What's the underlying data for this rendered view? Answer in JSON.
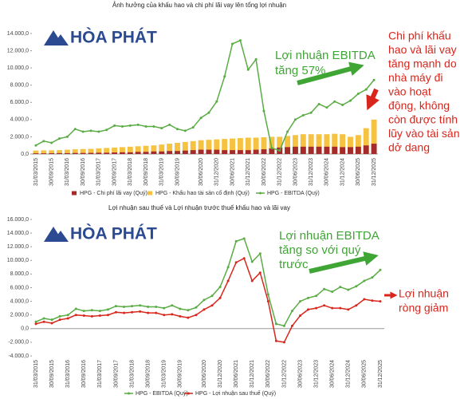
{
  "chart_data": [
    {
      "type": "combo",
      "title": "Ảnh hưởng của khấu hao và chi phí lãi vay lên tổng lợi nhuận",
      "logo": "HÒA PHÁT",
      "categories": [
        "31/03/2015",
        null,
        "30/09/2015",
        null,
        "31/03/2016",
        null,
        "30/09/2016",
        null,
        "31/03/2017",
        null,
        "30/09/2017",
        null,
        "31/03/2018",
        null,
        "30/09/2018",
        null,
        "31/03/2019",
        null,
        "30/09/2019",
        null,
        null,
        "30/06/2020",
        null,
        "31/12/2020",
        null,
        "30/06/2021",
        null,
        "31/12/2021",
        null,
        "30/06/2022",
        null,
        "31/12/2022",
        null,
        "30/06/2023",
        null,
        "31/12/2023",
        null,
        "30/06/2024",
        null,
        "31/12/2024",
        null,
        "30/06/2025",
        null,
        "31/12/2025"
      ],
      "series": [
        {
          "name": "HPG - Chi phí lãi vay (Quý)",
          "type": "bar",
          "color": "#a52a2a",
          "values": [
            80,
            80,
            90,
            100,
            100,
            120,
            120,
            130,
            150,
            150,
            180,
            200,
            200,
            250,
            250,
            300,
            300,
            350,
            350,
            400,
            450,
            500,
            500,
            500,
            450,
            450,
            450,
            450,
            500,
            550,
            650,
            750,
            800,
            850,
            850,
            850,
            850,
            850,
            850,
            800,
            800,
            850,
            1000,
            1200
          ]
        },
        {
          "name": "HPG - Khấu hao tài sản cố định (Quý)",
          "type": "bar",
          "color": "#f5c242",
          "values": [
            400,
            420,
            430,
            450,
            500,
            550,
            580,
            600,
            650,
            700,
            750,
            800,
            850,
            900,
            950,
            1000,
            1100,
            1200,
            1300,
            1400,
            1500,
            1600,
            1650,
            1700,
            1750,
            1800,
            1850,
            1900,
            1900,
            1950,
            2000,
            2000,
            2100,
            2200,
            2300,
            2300,
            2300,
            2300,
            2350,
            2300,
            2000,
            2200,
            3000,
            4000
          ]
        },
        {
          "name": "HPG - EBITDA (Quý)",
          "type": "line",
          "color": "#5aac44",
          "values": [
            1000,
            1500,
            1300,
            1800,
            2000,
            2900,
            2600,
            2700,
            2600,
            2800,
            3300,
            3200,
            3300,
            3400,
            3200,
            3200,
            3000,
            3400,
            2900,
            2700,
            3100,
            4200,
            4800,
            6100,
            9000,
            12800,
            13200,
            9800,
            11000,
            5000,
            700,
            400,
            2600,
            4000,
            4500,
            4800,
            5800,
            5400,
            6100,
            5700,
            6200,
            7000,
            7500,
            8600
          ]
        }
      ],
      "ylim": [
        0,
        14000
      ],
      "yticks": [
        {
          "value": 0,
          "label": "0,0"
        },
        {
          "value": 2000,
          "label": "2.000,0"
        },
        {
          "value": 4000,
          "label": "4.000,0"
        },
        {
          "value": 6000,
          "label": "6.000,0"
        },
        {
          "value": 8000,
          "label": "8.000,0"
        },
        {
          "value": 10000,
          "label": "10.000,0"
        },
        {
          "value": 12000,
          "label": "12.000,0"
        },
        {
          "value": 14000,
          "label": "14.000,0"
        }
      ],
      "annotations": [
        {
          "color": "#3fa535",
          "lines": [
            "Lợi nhuận EBITDA",
            "tăng 57%"
          ]
        },
        {
          "color": "#d8261c",
          "lines": [
            "Chi phí khấu",
            "hao và lãi vay",
            "tăng mạnh do",
            "nhà máy đi",
            "vào hoạt",
            "động, không",
            "còn được tính",
            "lũy vào tài sản",
            "dở dang"
          ]
        }
      ]
    },
    {
      "type": "line",
      "title": "Lợi nhuận sau thuế và Lợi nhuận trước thuế khấu hao và lãi vay",
      "logo": "HÒA PHÁT",
      "categories": [
        "31/03/2015",
        null,
        "30/09/2015",
        null,
        "31/03/2016",
        null,
        "30/09/2016",
        null,
        "31/03/2017",
        null,
        "30/09/2017",
        null,
        "31/03/2018",
        null,
        "30/09/2018",
        null,
        "31/03/2019",
        null,
        "30/09/2019",
        null,
        null,
        "30/06/2020",
        null,
        "31/12/2020",
        null,
        "30/06/2021",
        null,
        "31/12/2021",
        null,
        "30/06/2022",
        null,
        "31/12/2022",
        null,
        "30/06/2023",
        null,
        "31/12/2023",
        null,
        "30/06/2024",
        null,
        "31/12/2024",
        null,
        "30/06/2025",
        null,
        "31/12/2025"
      ],
      "series": [
        {
          "name": "HPG - EBITDA (Quý)",
          "type": "line",
          "color": "#5aac44",
          "values": [
            1000,
            1500,
            1300,
            1800,
            2000,
            2900,
            2600,
            2700,
            2600,
            2800,
            3300,
            3200,
            3300,
            3400,
            3200,
            3200,
            3000,
            3400,
            2900,
            2700,
            3100,
            4200,
            4800,
            6100,
            9000,
            12800,
            13200,
            9800,
            11000,
            5000,
            700,
            400,
            2600,
            4000,
            4500,
            4800,
            5800,
            5400,
            6100,
            5700,
            6200,
            7000,
            7500,
            8600
          ]
        },
        {
          "name": "HPG - Lợi nhuận sau thuế (Quý)",
          "type": "line",
          "color": "#d8261c",
          "values": [
            700,
            1000,
            800,
            1300,
            1500,
            2000,
            1900,
            1800,
            1900,
            2000,
            2400,
            2300,
            2400,
            2500,
            2300,
            2300,
            2000,
            2100,
            1800,
            1600,
            2000,
            2800,
            3400,
            4500,
            7000,
            9700,
            10300,
            7000,
            8200,
            4000,
            -1800,
            -2000,
            400,
            1900,
            2800,
            3000,
            3400,
            3000,
            3000,
            2800,
            3400,
            4300,
            4100,
            4000
          ]
        }
      ],
      "ylim": [
        -4000,
        16000
      ],
      "yticks": [
        {
          "value": -4000,
          "label": "-4.000,0"
        },
        {
          "value": -2000,
          "label": "-2.000,0"
        },
        {
          "value": 0,
          "label": "0,0"
        },
        {
          "value": 2000,
          "label": "2.000,0"
        },
        {
          "value": 4000,
          "label": "4.000,0"
        },
        {
          "value": 6000,
          "label": "6.000,0"
        },
        {
          "value": 8000,
          "label": "8.000,0"
        },
        {
          "value": 10000,
          "label": "10.000,0"
        },
        {
          "value": 12000,
          "label": "12.000,0"
        },
        {
          "value": 14000,
          "label": "14.000,0"
        },
        {
          "value": 16000,
          "label": "16.000,0"
        }
      ],
      "annotations": [
        {
          "color": "#3fa535",
          "lines": [
            "Lợi nhuận EBITDA",
            "tăng so với quý",
            "trước"
          ]
        },
        {
          "color": "#d8261c",
          "lines": [
            "Lợi nhuận",
            "ròng giảm"
          ]
        }
      ]
    }
  ]
}
